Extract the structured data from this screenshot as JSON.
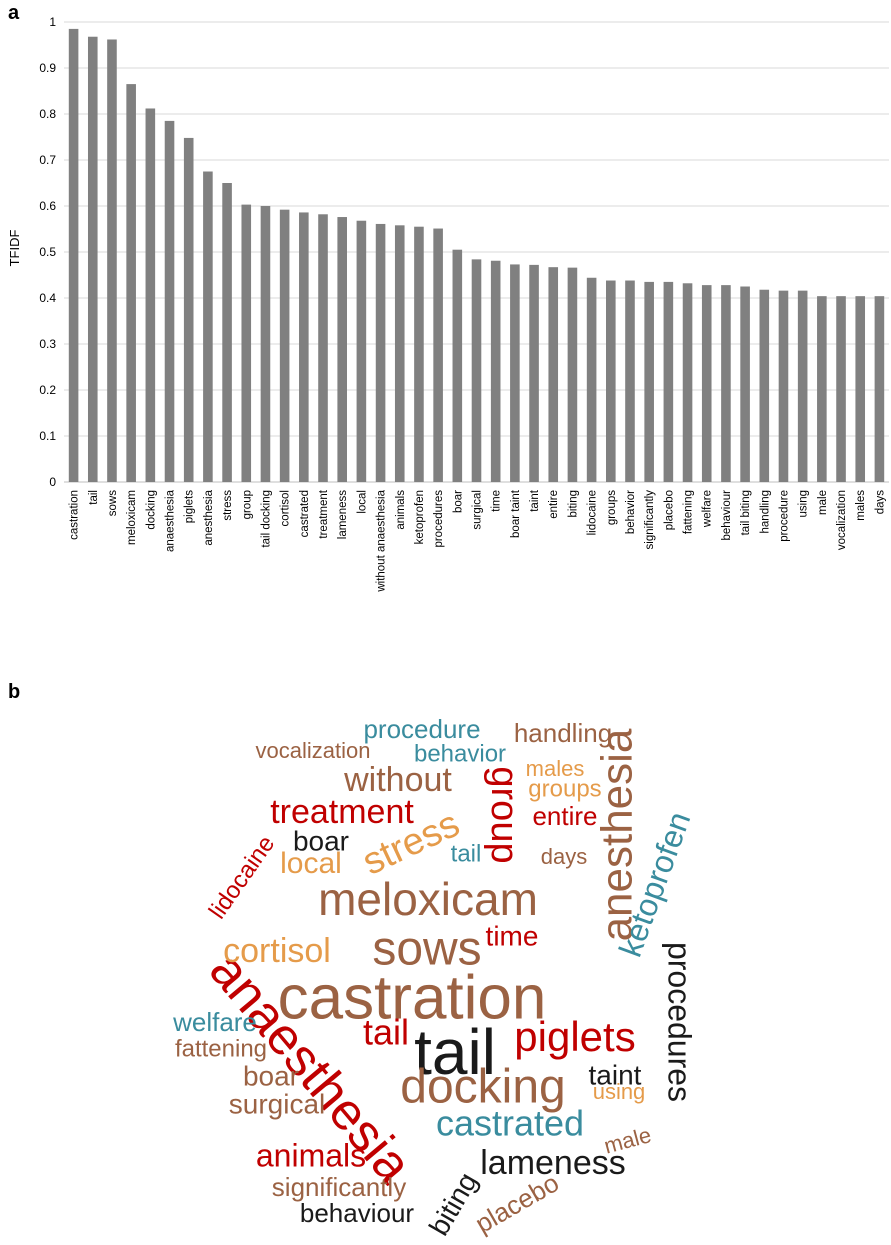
{
  "panels": {
    "a": "a",
    "b": "b"
  },
  "chart_data": [
    {
      "type": "bar",
      "ylabel": "TFIDF",
      "ylim": [
        0,
        1
      ],
      "yticks": [
        "0",
        "0.1",
        "0.2",
        "0.3",
        "0.4",
        "0.5",
        "0.6",
        "0.7",
        "0.8",
        "0.9",
        "1"
      ],
      "grid": true,
      "bar_color": "#808080",
      "categories": [
        "castration",
        "tail",
        "sows",
        "meloxicam",
        "docking",
        "anaesthesia",
        "piglets",
        "anesthesia",
        "stress",
        "group",
        "tail docking",
        "cortisol",
        "castrated",
        "treatment",
        "lameness",
        "local",
        "without anaesthesia",
        "animals",
        "ketoprofen",
        "procedures",
        "boar",
        "surgical",
        "time",
        "boar taint",
        "taint",
        "entire",
        "biting",
        "lidocaine",
        "groups",
        "behavior",
        "significantly",
        "placebo",
        "fattening",
        "welfare",
        "behaviour",
        "tail biting",
        "handling",
        "procedure",
        "using",
        "male",
        "vocalization",
        "males",
        "days"
      ],
      "values": [
        0.985,
        0.968,
        0.962,
        0.865,
        0.812,
        0.785,
        0.748,
        0.675,
        0.65,
        0.603,
        0.6,
        0.592,
        0.586,
        0.582,
        0.576,
        0.568,
        0.561,
        0.558,
        0.555,
        0.551,
        0.505,
        0.484,
        0.481,
        0.473,
        0.472,
        0.467,
        0.466,
        0.444,
        0.438,
        0.438,
        0.435,
        0.435,
        0.432,
        0.428,
        0.428,
        0.425,
        0.418,
        0.416,
        0.416,
        0.404,
        0.404,
        0.404,
        0.404
      ]
    },
    {
      "type": "wordcloud",
      "colors": {
        "brown": "#9B6243",
        "red": "#C00000",
        "black": "#1A1A1A",
        "teal": "#3A8C9E",
        "orange": "#E59B4A"
      },
      "words": [
        {
          "text": "castration",
          "color": "#9B6243"
        },
        {
          "text": "tail",
          "color": "#1A1A1A"
        },
        {
          "text": "sows",
          "color": "#9B6243"
        },
        {
          "text": "meloxicam",
          "color": "#9B6243"
        },
        {
          "text": "anaesthesia",
          "color": "#C00000"
        },
        {
          "text": "docking",
          "color": "#9B6243"
        },
        {
          "text": "piglets",
          "color": "#C00000"
        },
        {
          "text": "anesthesia",
          "color": "#9B6243"
        },
        {
          "text": "stress",
          "color": "#E59B4A"
        },
        {
          "text": "group",
          "color": "#C00000"
        },
        {
          "text": "tail",
          "color": "#C00000"
        },
        {
          "text": "tail",
          "color": "#3A8C9E"
        },
        {
          "text": "cortisol",
          "color": "#E59B4A"
        },
        {
          "text": "castrated",
          "color": "#3A8C9E"
        },
        {
          "text": "treatment",
          "color": "#C00000"
        },
        {
          "text": "lameness",
          "color": "#1A1A1A"
        },
        {
          "text": "local",
          "color": "#E59B4A"
        },
        {
          "text": "without",
          "color": "#9B6243"
        },
        {
          "text": "animals",
          "color": "#C00000"
        },
        {
          "text": "ketoprofen",
          "color": "#3A8C9E"
        },
        {
          "text": "procedures",
          "color": "#1A1A1A"
        },
        {
          "text": "boar",
          "color": "#1A1A1A"
        },
        {
          "text": "boar",
          "color": "#9B6243"
        },
        {
          "text": "surgical",
          "color": "#9B6243"
        },
        {
          "text": "time",
          "color": "#C00000"
        },
        {
          "text": "taint",
          "color": "#1A1A1A"
        },
        {
          "text": "entire",
          "color": "#C00000"
        },
        {
          "text": "biting",
          "color": "#1A1A1A"
        },
        {
          "text": "lidocaine",
          "color": "#C00000"
        },
        {
          "text": "groups",
          "color": "#E59B4A"
        },
        {
          "text": "behavior",
          "color": "#3A8C9E"
        },
        {
          "text": "significantly",
          "color": "#9B6243"
        },
        {
          "text": "placebo",
          "color": "#9B6243"
        },
        {
          "text": "fattening",
          "color": "#9B6243"
        },
        {
          "text": "welfare",
          "color": "#3A8C9E"
        },
        {
          "text": "behaviour",
          "color": "#1A1A1A"
        },
        {
          "text": "handling",
          "color": "#9B6243"
        },
        {
          "text": "procedure",
          "color": "#3A8C9E"
        },
        {
          "text": "using",
          "color": "#E59B4A"
        },
        {
          "text": "male",
          "color": "#9B6243"
        },
        {
          "text": "vocalization",
          "color": "#9B6243"
        },
        {
          "text": "males",
          "color": "#E59B4A"
        },
        {
          "text": "days",
          "color": "#9B6243"
        }
      ]
    }
  ]
}
